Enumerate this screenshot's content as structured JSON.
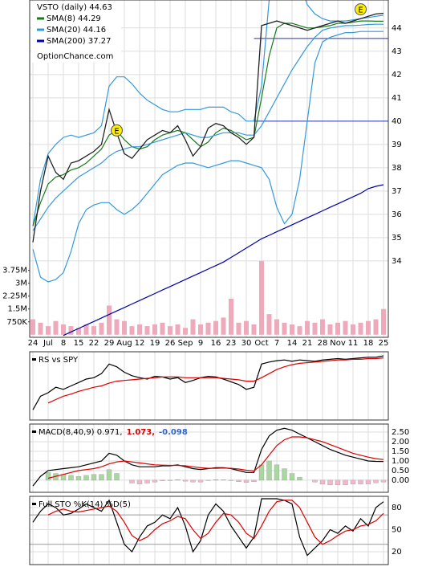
{
  "chart_data": [
    {
      "type": "line",
      "title": "VSTO (daily) 44.63",
      "watermark": "OptionChance.com",
      "categories": [
        "24",
        null,
        "Jul",
        null,
        "8",
        null,
        "15",
        null,
        "22",
        null,
        "29",
        null,
        "Aug",
        null,
        "12",
        null,
        "19",
        null,
        "26",
        null,
        "Sep",
        null,
        "9",
        null,
        "16",
        null,
        "23",
        null,
        "30",
        null,
        "Oct",
        null,
        "7",
        null,
        "14",
        null,
        "21",
        null,
        "28",
        null,
        "Nov",
        null,
        "11",
        null,
        "18",
        null,
        "25"
      ],
      "values": [
        34.8,
        37.0,
        38.5,
        37.8,
        37.5,
        38.2,
        38.3,
        38.5,
        38.7,
        39.0,
        40.5,
        39.5,
        38.6,
        38.4,
        38.8,
        39.2,
        39.4,
        39.6,
        39.5,
        39.8,
        39.2,
        38.5,
        38.9,
        39.7,
        39.9,
        39.8,
        39.5,
        39.3,
        39.0,
        39.3,
        44.1,
        44.2,
        44.3,
        44.2,
        44.1,
        44.0,
        43.9,
        44.0,
        44.1,
        44.2,
        44.3,
        44.2,
        44.3,
        44.4,
        44.5,
        44.6,
        44.63
      ],
      "color": "#222222",
      "series": [
        {
          "name": "SMA(8) 44.29",
          "color": "#1a7a1a",
          "values": [
            35.5,
            36.5,
            37.3,
            37.6,
            37.7,
            37.9,
            38.0,
            38.2,
            38.5,
            38.8,
            39.4,
            39.6,
            39.2,
            38.9,
            38.8,
            38.9,
            39.2,
            39.4,
            39.5,
            39.6,
            39.5,
            39.2,
            38.9,
            39.1,
            39.5,
            39.7,
            39.6,
            39.4,
            39.2,
            39.3,
            41.0,
            42.8,
            44.0,
            44.2,
            44.2,
            44.1,
            44.0,
            44.0,
            44.05,
            44.1,
            44.2,
            44.2,
            44.25,
            44.3,
            44.3,
            44.29,
            44.29
          ]
        },
        {
          "name": "SMA(20) 44.16",
          "color": "#3399dd",
          "values": [
            35.3,
            35.8,
            36.3,
            36.7,
            37.0,
            37.3,
            37.6,
            37.8,
            38.0,
            38.2,
            38.5,
            38.7,
            38.8,
            38.9,
            38.9,
            39.0,
            39.1,
            39.2,
            39.3,
            39.4,
            39.5,
            39.4,
            39.3,
            39.3,
            39.4,
            39.5,
            39.5,
            39.5,
            39.4,
            39.4,
            39.8,
            40.4,
            41.0,
            41.6,
            42.2,
            42.7,
            43.2,
            43.6,
            43.9,
            44.0,
            44.05,
            44.1,
            44.1,
            44.12,
            44.15,
            44.16,
            44.16
          ]
        },
        {
          "name": "SMA(200) 37.27",
          "color": "#0000aa",
          "values": [
            null,
            null,
            null,
            null,
            30.8,
            30.95,
            31.1,
            31.25,
            31.4,
            31.55,
            31.7,
            31.85,
            32.0,
            32.15,
            32.3,
            32.45,
            32.6,
            32.75,
            32.9,
            33.05,
            33.2,
            33.35,
            33.5,
            33.65,
            33.8,
            33.95,
            34.15,
            34.35,
            34.55,
            34.75,
            34.95,
            35.1,
            35.25,
            35.4,
            35.55,
            35.7,
            35.85,
            36.0,
            36.15,
            36.3,
            36.45,
            36.6,
            36.75,
            36.9,
            37.1,
            37.2,
            37.27
          ]
        }
      ],
      "bands": {
        "color": "#3399dd",
        "upper": [
          35.5,
          37.5,
          38.6,
          39.0,
          39.3,
          39.4,
          39.3,
          39.4,
          39.5,
          39.8,
          41.5,
          41.9,
          41.9,
          41.6,
          41.2,
          40.9,
          40.7,
          40.5,
          40.4,
          40.4,
          40.5,
          40.5,
          40.5,
          40.6,
          40.6,
          40.6,
          40.4,
          40.3,
          40.0,
          40.0,
          41.5,
          45.2,
          46.5,
          47.5,
          47.2,
          46.0,
          45.0,
          44.6,
          44.4,
          44.3,
          44.3,
          44.3,
          44.35,
          44.4,
          44.45,
          44.5,
          44.55
        ],
        "lower": [
          34.5,
          33.3,
          33.1,
          33.2,
          33.5,
          34.4,
          35.6,
          36.2,
          36.4,
          36.5,
          36.5,
          36.2,
          36.0,
          36.2,
          36.5,
          36.9,
          37.3,
          37.7,
          37.9,
          38.1,
          38.2,
          38.2,
          38.1,
          38.0,
          38.1,
          38.2,
          38.3,
          38.3,
          38.2,
          38.1,
          38.0,
          37.5,
          36.3,
          35.6,
          36.0,
          37.5,
          40.0,
          42.5,
          43.4,
          43.6,
          43.7,
          43.8,
          43.8,
          43.85,
          43.85,
          43.85,
          43.85
        ]
      },
      "levels": [
        40,
        43.55
      ],
      "level_color": "#2233bb",
      "events": [
        {
          "label": "E",
          "index": 11,
          "y": 39.6
        },
        {
          "label": "E",
          "index": 43,
          "y": 44.8
        }
      ],
      "ylim": [
        30.72,
        45.2
      ],
      "yticks": [
        34,
        35,
        36,
        37,
        38,
        39,
        40,
        41,
        42,
        43,
        44
      ],
      "grid": true,
      "volume": {
        "color": "#eeaabb",
        "values": [
          900000,
          700000,
          500000,
          800000,
          600000,
          500000,
          400000,
          600000,
          500000,
          700000,
          1700000,
          900000,
          800000,
          500000,
          600000,
          500000,
          600000,
          700000,
          500000,
          600000,
          400000,
          900000,
          600000,
          700000,
          800000,
          1000000,
          2100000,
          700000,
          800000,
          600000,
          4300000,
          1200000,
          900000,
          700000,
          600000,
          500000,
          800000,
          700000,
          900000,
          600000,
          700000,
          800000,
          600000,
          700000,
          800000,
          900000,
          1500000
        ],
        "ylim": [
          -150000,
          19500000
        ],
        "yticks": [
          {
            "value": 750000,
            "label": "750K"
          },
          {
            "value": 1500000,
            "label": "1.5M"
          },
          {
            "value": 2250000,
            "label": "2.25M"
          },
          {
            "value": 3000000,
            "label": "3M"
          },
          {
            "value": 3750000,
            "label": "3.75M"
          }
        ]
      }
    },
    {
      "type": "line",
      "ylim": [
        0,
        100
      ],
      "series": [
        {
          "name": "RS vs SPY",
          "color": "#000000",
          "values": [
            15,
            35,
            40,
            48,
            45,
            50,
            55,
            60,
            62,
            68,
            82,
            78,
            70,
            65,
            62,
            60,
            64,
            63,
            60,
            62,
            55,
            58,
            62,
            64,
            63,
            60,
            56,
            52,
            45,
            48,
            82,
            85,
            87,
            88,
            86,
            88,
            87,
            86,
            88,
            89,
            90,
            89,
            90,
            91,
            92,
            92,
            94
          ]
        },
        {
          "color": "#dd0000",
          "values": [
            null,
            null,
            25,
            30,
            35,
            38,
            42,
            45,
            48,
            50,
            54,
            57,
            58,
            59,
            60,
            61,
            62,
            63,
            63,
            63,
            62,
            62,
            62,
            62,
            62,
            61,
            60,
            59,
            57,
            57,
            62,
            68,
            74,
            78,
            81,
            83,
            84,
            85,
            86,
            87,
            88,
            88,
            89,
            89,
            90,
            90,
            91
          ]
        }
      ]
    },
    {
      "type": "macd",
      "ylim": [
        -0.63,
        2.92
      ],
      "yticks": [
        {
          "value": 0,
          "label": "0.00"
        },
        {
          "value": 0.5,
          "label": "0.50"
        },
        {
          "value": 1,
          "label": "1.00"
        },
        {
          "value": 1.5,
          "label": "1.50"
        },
        {
          "value": 2,
          "label": "2.00"
        },
        {
          "value": 2.5,
          "label": "2.50"
        }
      ],
      "bar_colors": [
        "#a8d8a0",
        "#f0b8c8"
      ],
      "series": [
        {
          "name": "MACD(8,40,9) 0.971,",
          "color": "#000000",
          "values": [
            -0.3,
            0.2,
            0.5,
            0.55,
            0.6,
            0.65,
            0.7,
            0.8,
            0.9,
            1.0,
            1.4,
            1.3,
            1.0,
            0.8,
            0.7,
            0.7,
            0.7,
            0.75,
            0.75,
            0.8,
            0.7,
            0.6,
            0.55,
            0.6,
            0.65,
            0.65,
            0.6,
            0.5,
            0.4,
            0.4,
            1.6,
            2.3,
            2.6,
            2.7,
            2.6,
            2.4,
            2.2,
            2.0,
            1.8,
            1.6,
            1.45,
            1.3,
            1.2,
            1.1,
            1.0,
            0.98,
            0.971
          ]
        },
        {
          "name": "1.073,",
          "color": "#dd0000",
          "values": [
            null,
            null,
            0.1,
            0.2,
            0.3,
            0.4,
            0.5,
            0.55,
            0.6,
            0.7,
            0.85,
            0.95,
            1.0,
            0.95,
            0.9,
            0.85,
            0.8,
            0.78,
            0.77,
            0.77,
            0.75,
            0.7,
            0.65,
            0.62,
            0.62,
            0.63,
            0.62,
            0.58,
            0.52,
            0.48,
            0.8,
            1.3,
            1.8,
            2.1,
            2.25,
            2.25,
            2.2,
            2.1,
            2.0,
            1.85,
            1.7,
            1.55,
            1.4,
            1.3,
            1.2,
            1.12,
            1.073
          ]
        },
        {
          "name": "-0.098",
          "color": "#3366cc",
          "kind": "histogram",
          "values": [
            null,
            null,
            0.4,
            0.35,
            0.3,
            0.25,
            0.2,
            0.25,
            0.3,
            0.3,
            0.55,
            0.35,
            0.0,
            -0.15,
            -0.2,
            -0.15,
            -0.1,
            -0.03,
            -0.02,
            0.03,
            -0.05,
            -0.1,
            -0.1,
            -0.02,
            0.03,
            0.02,
            -0.02,
            -0.08,
            -0.12,
            -0.08,
            0.8,
            1.0,
            0.8,
            0.6,
            0.35,
            0.15,
            0.0,
            -0.1,
            -0.2,
            -0.25,
            -0.25,
            -0.25,
            -0.2,
            -0.2,
            -0.2,
            -0.14,
            -0.098
          ]
        }
      ]
    },
    {
      "type": "line",
      "title": "Full STO %K(14) %D(5)",
      "ylim": [
        2.5,
        95.3
      ],
      "yticks": [
        20,
        50,
        80
      ],
      "levels": [
        30,
        70
      ],
      "level_color": "#999999",
      "series": [
        {
          "color": "#000000",
          "values": [
            60,
            75,
            85,
            80,
            70,
            72,
            78,
            85,
            80,
            75,
            90,
            60,
            30,
            20,
            40,
            55,
            60,
            70,
            65,
            80,
            55,
            20,
            35,
            70,
            85,
            75,
            55,
            40,
            25,
            40,
            92,
            92,
            92,
            90,
            85,
            40,
            15,
            25,
            35,
            50,
            45,
            55,
            48,
            65,
            55,
            80,
            88
          ]
        },
        {
          "color": "#dd0000",
          "values": [
            null,
            null,
            70,
            75,
            78,
            75,
            74,
            76,
            78,
            80,
            82,
            75,
            60,
            42,
            35,
            40,
            50,
            58,
            62,
            68,
            65,
            50,
            38,
            45,
            60,
            72,
            70,
            60,
            45,
            38,
            55,
            75,
            88,
            90,
            90,
            80,
            60,
            40,
            30,
            35,
            42,
            48,
            50,
            55,
            57,
            62,
            72
          ]
        }
      ]
    }
  ]
}
